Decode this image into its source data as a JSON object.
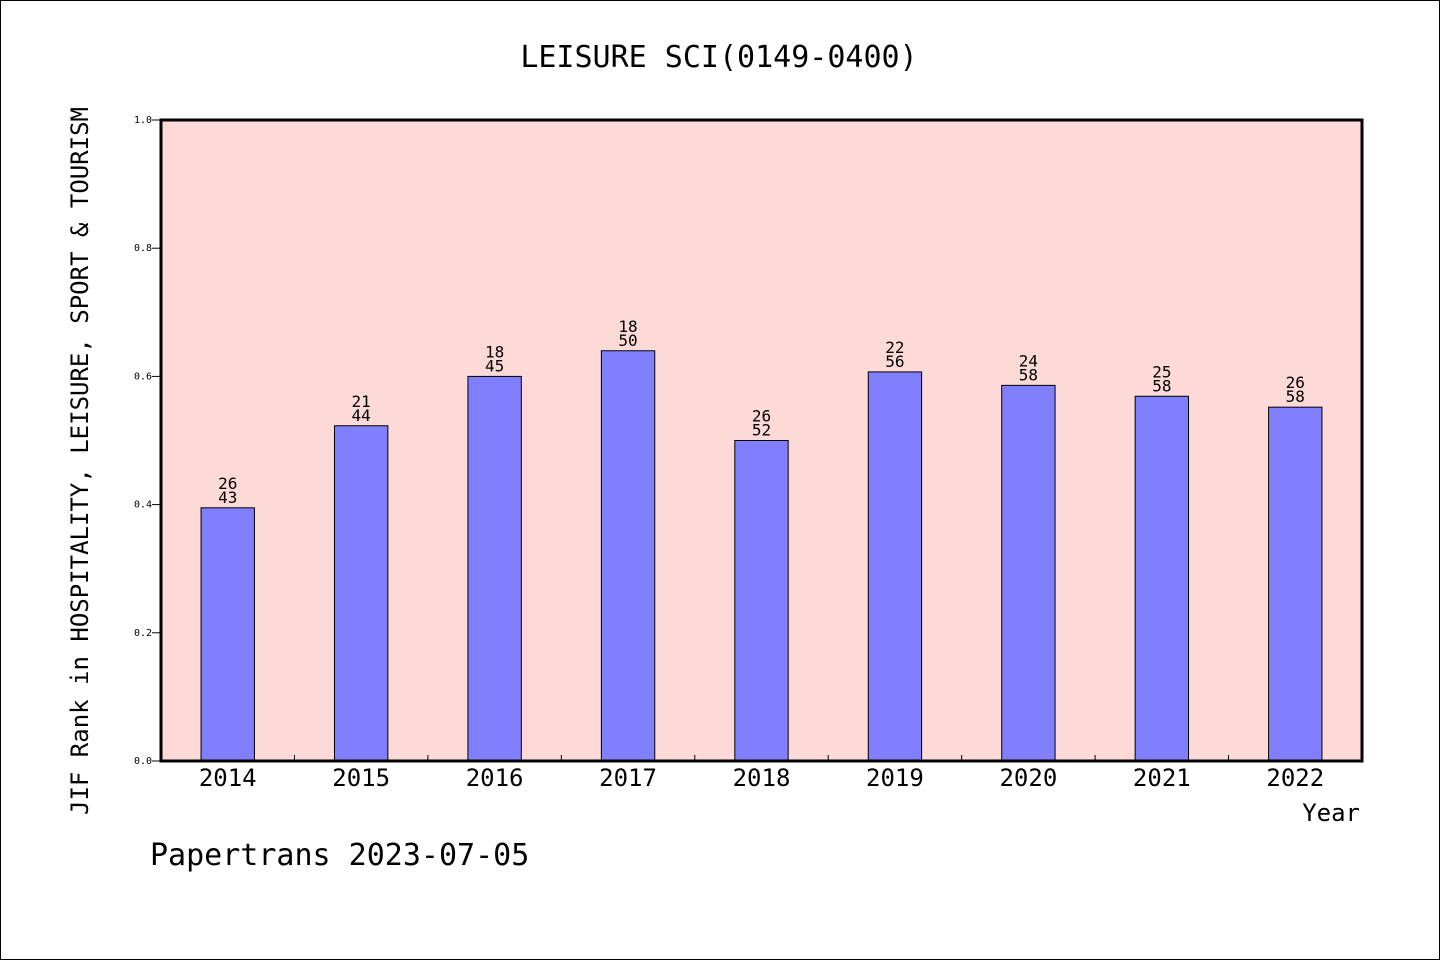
{
  "chart_data": {
    "type": "bar",
    "title": "LEISURE SCI(0149-0400)",
    "xlabel": "Year",
    "ylabel": "JIF Rank in HOSPITALITY, LEISURE, SPORT & TOURISM",
    "footer": "Papertrans 2023-07-05",
    "categories": [
      "2014",
      "2015",
      "2016",
      "2017",
      "2018",
      "2019",
      "2020",
      "2021",
      "2022"
    ],
    "values": [
      0.395,
      0.523,
      0.6,
      0.64,
      0.5,
      0.607,
      0.586,
      0.569,
      0.552
    ],
    "rank": [
      "26",
      "21",
      "18",
      "18",
      "26",
      "22",
      "24",
      "25",
      "26"
    ],
    "total": [
      "43",
      "44",
      "45",
      "50",
      "52",
      "56",
      "58",
      "58",
      "58"
    ],
    "ylim": [
      0,
      1.0
    ],
    "yticks": [
      "0.0",
      "0.2",
      "0.4",
      "0.6",
      "0.8",
      "1.0"
    ],
    "grid": false,
    "colors": {
      "bar": "#8080ff",
      "plot_background": "#fddad7",
      "axis": "#000000"
    }
  }
}
